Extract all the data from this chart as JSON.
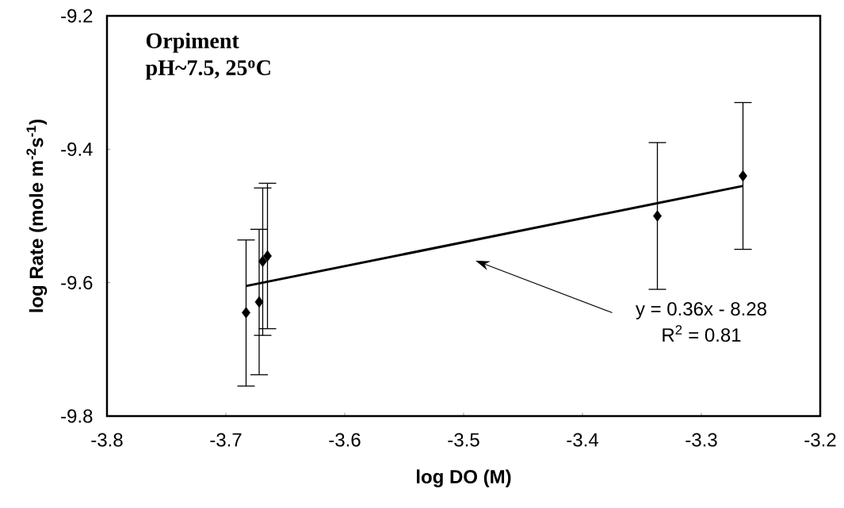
{
  "chart_data": {
    "type": "scatter",
    "title": "Orpiment",
    "subtitle": "pH~7.5, 25$^{o}$C",
    "xlabel": "log DO (M)",
    "ylabel": "log Rate (mole m$^{-2}$s$^{-1}$)",
    "xlim": [
      -3.8,
      -3.2
    ],
    "ylim": [
      -9.8,
      -9.2
    ],
    "xticks": [
      -3.8,
      -3.7,
      -3.6,
      -3.5,
      -3.4,
      -3.3,
      -3.2
    ],
    "yticks": [
      -9.8,
      -9.6,
      -9.4,
      -9.2
    ],
    "grid": false,
    "marker": "diamond",
    "series": [
      {
        "color": "#000000",
        "x": [
          -3.683,
          -3.672,
          -3.669,
          -3.665,
          -3.337,
          -3.265
        ],
        "values": [
          -9.645,
          -9.629,
          -9.568,
          -9.56,
          -9.5,
          -9.44
        ],
        "errors": [
          [
            -9.755,
            -9.536
          ],
          [
            -9.738,
            -9.52
          ],
          [
            -9.679,
            -9.458
          ],
          [
            -9.669,
            -9.451
          ],
          [
            -9.61,
            -9.39
          ],
          [
            -9.55,
            -9.33
          ]
        ]
      },
      {
        "type": "line",
        "color": "#000000",
        "marker": "none",
        "line_style": "solid",
        "x": [
          -3.683,
          -3.265
        ],
        "values": [
          -9.605,
          -9.455
        ]
      }
    ],
    "annotations": [
      "y = 0.36x - 8.28",
      "R$^{2}$ = 0.81"
    ]
  }
}
